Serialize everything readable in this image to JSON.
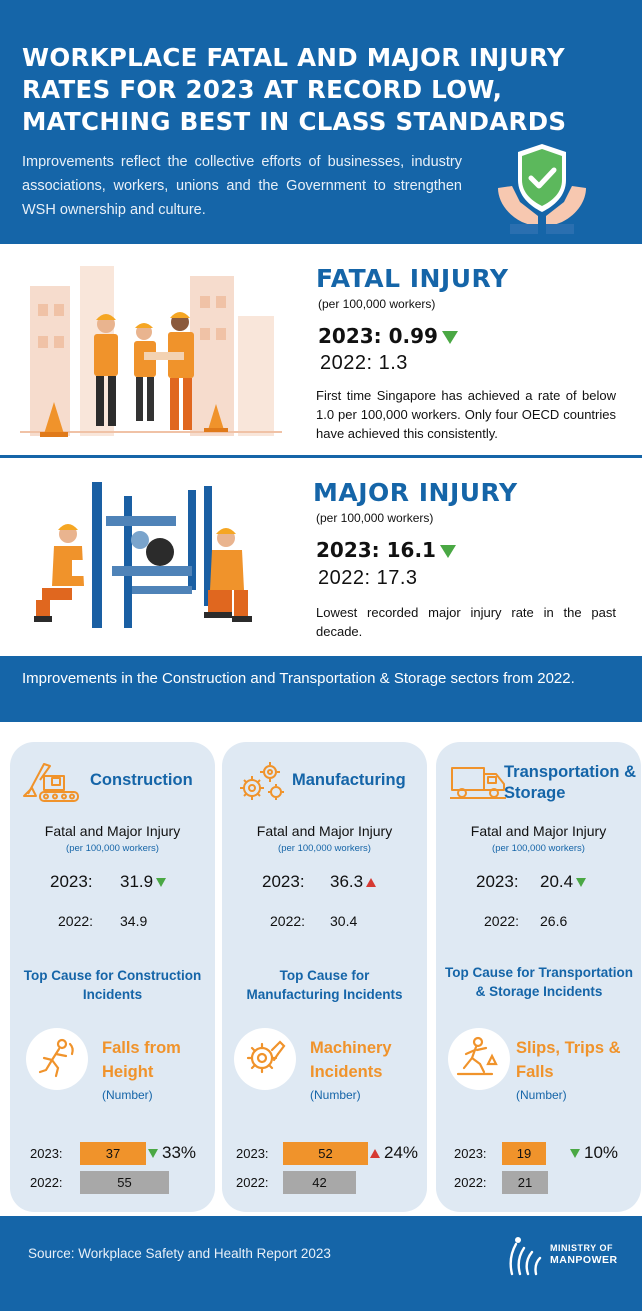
{
  "header": {
    "title_lines": [
      "WORKPLACE FATAL AND MAJOR INJURY",
      "RATES FOR 2023 AT RECORD LOW,",
      "MATCHING BEST IN CLASS STANDARDS"
    ],
    "subtitle": "Improvements reflect the collective efforts of businesses, industry associations, workers, unions and the Government to strengthen WSH ownership and culture.",
    "icon": "shield-check-hands-icon"
  },
  "fatal": {
    "title": "FATAL INJURY",
    "per": "(per 100,000 workers)",
    "current": "2023: 0.99",
    "previous": "2022: 1.3",
    "trend": "down",
    "description": "First time Singapore has achieved a rate of below 1.0 per 100,000 workers. Only four OECD countries have achieved this consistently."
  },
  "major": {
    "title": "MAJOR INJURY",
    "per": "(per 100,000 workers)",
    "current": "2023: 16.1",
    "previous": "2022: 17.3",
    "trend": "down",
    "description": "Lowest recorded major injury rate in the past decade."
  },
  "band": {
    "text": "Improvements in the Construction and Transportation & Storage sectors from 2022."
  },
  "sectors": [
    {
      "name": "Construction",
      "icon": "excavator-icon",
      "fmi_label": "Fatal and Major Injury",
      "fmi_per": "(per 100,000 workers)",
      "y2023_label": "2023:",
      "y2023_value": "31.9",
      "trend": "down",
      "y2022_label": "2022:",
      "y2022_value": "34.9",
      "top_cause_label": "Top Cause for Construction Incidents",
      "cause": "Falls from Height",
      "cause_icon": "falling-person-icon",
      "number_label": "(Number)",
      "bar2023_label": "2023:",
      "bar2023_value": 37,
      "bar2022_label": "2022:",
      "bar2022_value": 55,
      "pct_change": "33%",
      "pct_trend": "down"
    },
    {
      "name": "Manufacturing",
      "icon": "gears-icon",
      "fmi_label": "Fatal and Major Injury",
      "fmi_per": "(per 100,000 workers)",
      "y2023_label": "2023:",
      "y2023_value": "36.3",
      "trend": "up",
      "y2022_label": "2022:",
      "y2022_value": "30.4",
      "top_cause_label": "Top Cause for Manufacturing Incidents",
      "cause": "Machinery Incidents",
      "cause_icon": "machinery-hand-icon",
      "number_label": "(Number)",
      "bar2023_label": "2023:",
      "bar2023_value": 52,
      "bar2022_label": "2022:",
      "bar2022_value": 42,
      "pct_change": "24%",
      "pct_trend": "up"
    },
    {
      "name": "Transportation & Storage",
      "icon": "truck-icon",
      "fmi_label": "Fatal and Major Injury",
      "fmi_per": "(per 100,000 workers)",
      "y2023_label": "2023:",
      "y2023_value": "20.4",
      "trend": "down",
      "y2022_label": "2022:",
      "y2022_value": "26.6",
      "top_cause_label": "Top Cause for Transportation & Storage Incidents",
      "cause": "Slips, Trips & Falls",
      "cause_icon": "slipping-person-icon",
      "number_label": "(Number)",
      "bar2023_label": "2023:",
      "bar2023_value": 19,
      "bar2022_label": "2022:",
      "bar2022_value": 21,
      "pct_change": "10%",
      "pct_trend": "down"
    }
  ],
  "footer": {
    "source": "Source: Workplace Safety and Health Report 2023",
    "logo_line1": "MINISTRY OF",
    "logo_line2": "MANPOWER"
  },
  "colors": {
    "primary_blue": "#1565a8",
    "card_bg": "#dfe9f3",
    "orange": "#f0932b",
    "grey_bar": "#a8a8a8",
    "green_down": "#4aa844",
    "red_up": "#d63a33"
  }
}
